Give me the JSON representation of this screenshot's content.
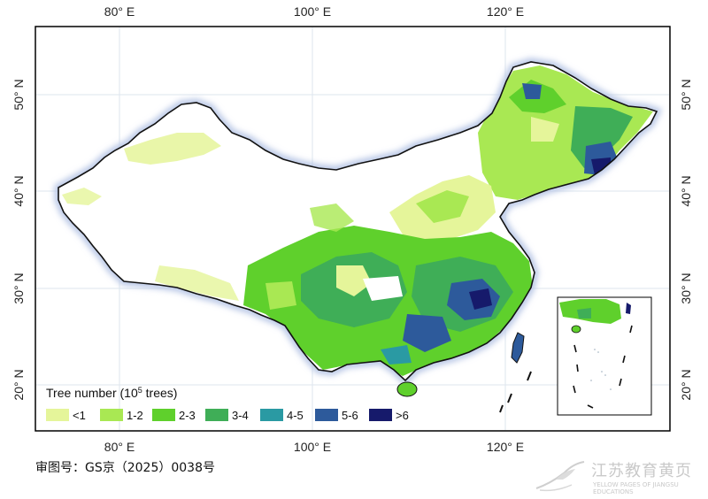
{
  "map": {
    "approval_number": "审图号：GS京（2025）0038号",
    "lon_ticks": [
      "80° E",
      "100° E",
      "120° E"
    ],
    "lat_ticks": [
      "50° N",
      "40° N",
      "30° N",
      "20° N"
    ],
    "legend": {
      "title": "Tree number (10",
      "title_sup": "5",
      "title_end": " trees)",
      "classes": [
        {
          "label": "<1",
          "color": "#e5f59a"
        },
        {
          "label": "1-2",
          "color": "#a9e853"
        },
        {
          "label": "2-3",
          "color": "#5fd02c"
        },
        {
          "label": "3-4",
          "color": "#3fae57"
        },
        {
          "label": "4-5",
          "color": "#2a9aa3"
        },
        {
          "label": "5-6",
          "color": "#2d5a9b"
        },
        {
          "label": ">6",
          "color": "#161a6b"
        }
      ]
    }
  },
  "watermark": {
    "name": "江苏教育黄页",
    "subtitle": "YELLOW PAGES OF JIANGSU EDUCATIONS"
  }
}
